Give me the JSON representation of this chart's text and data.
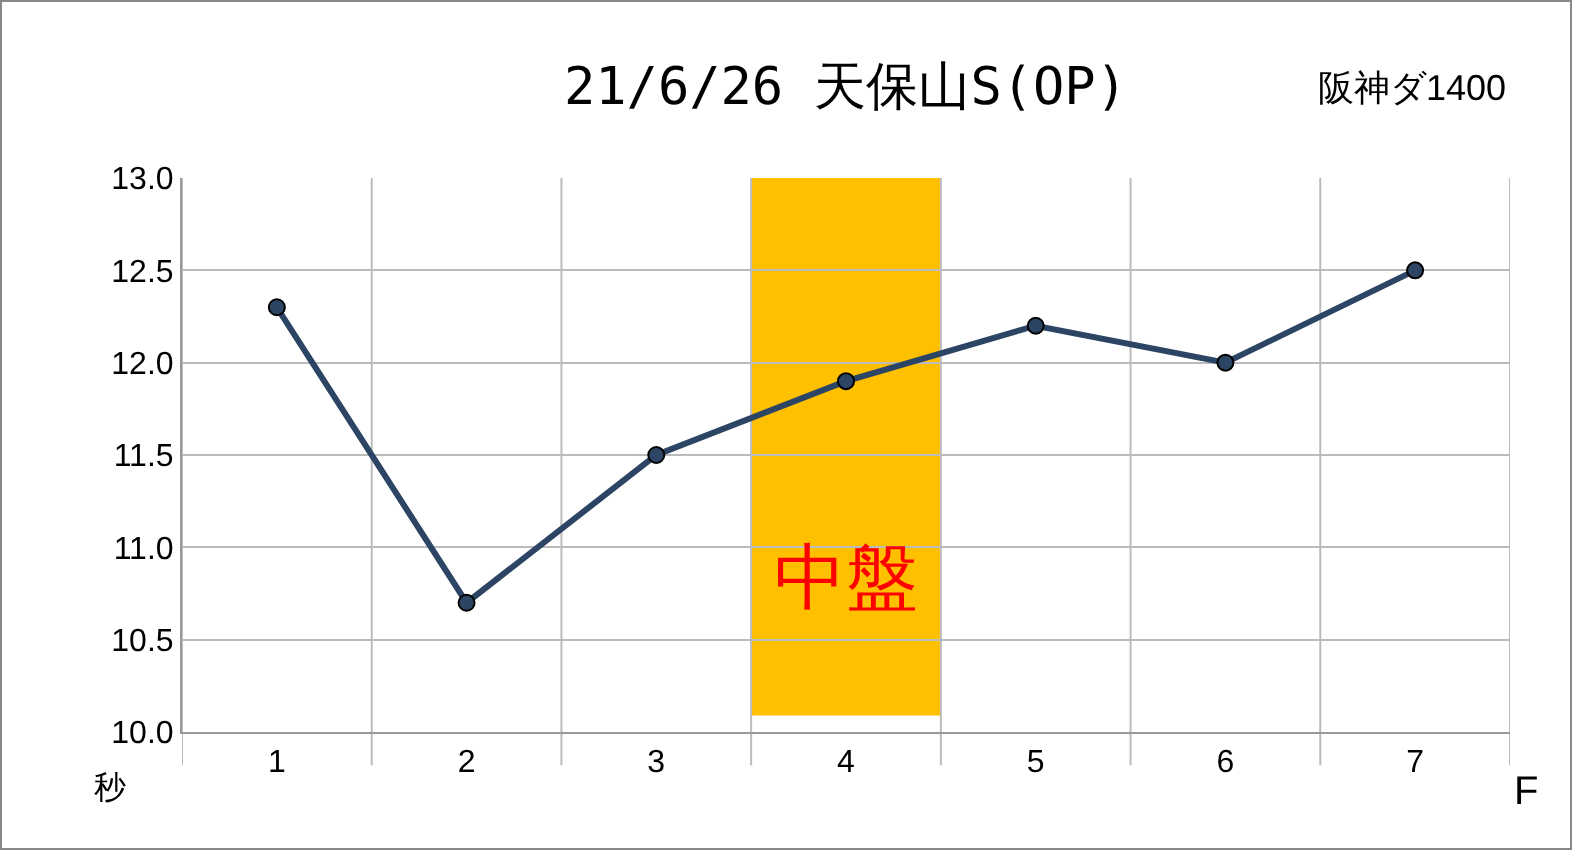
{
  "chart_data": {
    "type": "line",
    "title": "21/6/26 天保山S(OP)",
    "subtitle": "阪神ダ1400",
    "xlabel": "F",
    "ylabel": "秒",
    "categories": [
      "1",
      "2",
      "3",
      "4",
      "5",
      "6",
      "7"
    ],
    "series": [
      {
        "color": "#2d4565",
        "values": [
          12.3,
          10.7,
          11.5,
          11.9,
          12.2,
          12.0,
          12.5
        ]
      }
    ],
    "ylim": [
      10,
      13
    ],
    "yticks": [
      {
        "value": 10,
        "label": "10.0"
      },
      {
        "value": 10.5,
        "label": "10.5"
      },
      {
        "value": 11,
        "label": "11.0"
      },
      {
        "value": 11.5,
        "label": "11.5"
      },
      {
        "value": 12,
        "label": "12.0"
      },
      {
        "value": 12.5,
        "label": "12.5"
      },
      {
        "value": 13,
        "label": "13.0"
      }
    ],
    "bands": [
      {
        "axis": "x",
        "from": "4",
        "to": "4",
        "label": "中盤",
        "color": "#ffc000"
      }
    ],
    "grid": true,
    "marker": "circle",
    "line_style": "solid"
  }
}
